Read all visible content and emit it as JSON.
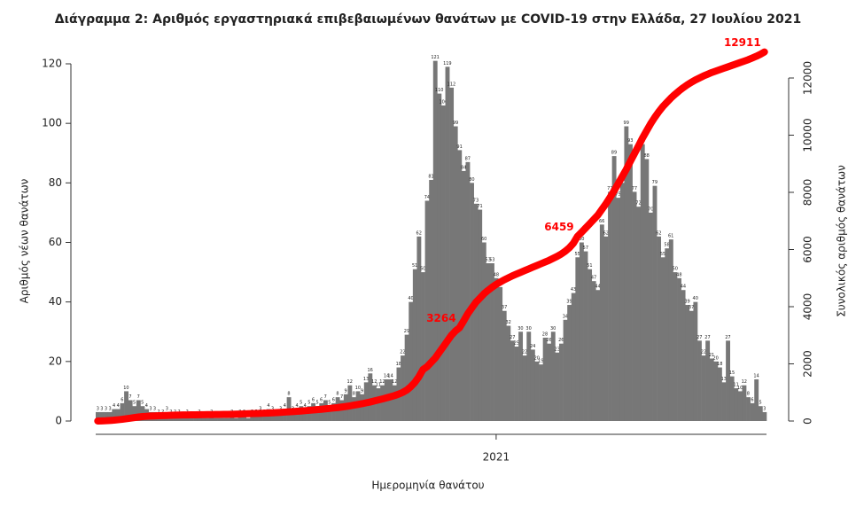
{
  "chart_data": {
    "type": "bar-line",
    "title": "Διάγραμμα 2: Αριθμός εργαστηριακά επιβεβαιωμένων θανάτων με COVID-19 στην Ελλάδα, 27 Ιουλίου 2021",
    "x_label": "Ημερομηνία θανάτου",
    "y_label": "Αριθμός νέων θανάτων",
    "y2_label": "Συνολικός αριθμός θανάτων",
    "categories": [
      null,
      null,
      null,
      null,
      null,
      null,
      null,
      null,
      null,
      null,
      null,
      null,
      null,
      null,
      null,
      null,
      null,
      null,
      null,
      null,
      null,
      null,
      null,
      null,
      null,
      null,
      null,
      null,
      null,
      null,
      null,
      null,
      null,
      null,
      null,
      null,
      null,
      null,
      null,
      null,
      null,
      null,
      null,
      null,
      null,
      null,
      null,
      null,
      null,
      null,
      null,
      null,
      null,
      null,
      null,
      null,
      null,
      null,
      null,
      null,
      null,
      null,
      null,
      null,
      null,
      null,
      null,
      null,
      null,
      null,
      null,
      null,
      null,
      null,
      null,
      null,
      null,
      null,
      null,
      null,
      null,
      null,
      null,
      null,
      null,
      null,
      null,
      null,
      null,
      null,
      null,
      null,
      null,
      null,
      null,
      null,
      null,
      null,
      "2021",
      null,
      null,
      null,
      null,
      null,
      null,
      null,
      null,
      null,
      null,
      null,
      null,
      null,
      null,
      null,
      null,
      null,
      null,
      null,
      null,
      null,
      null,
      null,
      null,
      null,
      null,
      null,
      null,
      null,
      null,
      null,
      null,
      null,
      null,
      null,
      null,
      null,
      null,
      null,
      null,
      null,
      null,
      null,
      null,
      null,
      null,
      null,
      null,
      null,
      null,
      null,
      null,
      null,
      null,
      null,
      null,
      null,
      null,
      null,
      null,
      null,
      null,
      null,
      null,
      null,
      null
    ],
    "series": [
      {
        "color": "#777777",
        "values": [
          3,
          3,
          3,
          3,
          4,
          4,
          6,
          10,
          7,
          5,
          7,
          5,
          4,
          3,
          3,
          2,
          2,
          3,
          2,
          2,
          2,
          1,
          2,
          1,
          1,
          2,
          1,
          1,
          2,
          1,
          1,
          1,
          1,
          2,
          1,
          2,
          2,
          1,
          2,
          2,
          3,
          2,
          4,
          3,
          2,
          3,
          4,
          8,
          3,
          4,
          5,
          4,
          5,
          6,
          5,
          6,
          7,
          5,
          6,
          8,
          7,
          9,
          12,
          8,
          10,
          9,
          13,
          16,
          12,
          11,
          12,
          14,
          14,
          12,
          18,
          22,
          29,
          40,
          51,
          62,
          50,
          74,
          81,
          121,
          110,
          106,
          119,
          112,
          99,
          91,
          84,
          87,
          80,
          73,
          71,
          60,
          53,
          53,
          48,
          45,
          37,
          32,
          27,
          25,
          30,
          22,
          30,
          24,
          20,
          19,
          28,
          26,
          30,
          23,
          26,
          34,
          39,
          43,
          55,
          60,
          57,
          51,
          47,
          44,
          66,
          62,
          77,
          89,
          75,
          80,
          99,
          93,
          77,
          72,
          93,
          88,
          70,
          79,
          62,
          55,
          58,
          61,
          50,
          48,
          44,
          39,
          37,
          40,
          27,
          22,
          27,
          21,
          20,
          18,
          13,
          27,
          15,
          11,
          10,
          12,
          8,
          6,
          14,
          5,
          3
        ]
      },
      {
        "color": "#ff0000",
        "axis": "y2",
        "values": [
          0,
          5,
          10,
          20,
          30,
          45,
          60,
          80,
          100,
          120,
          140,
          155,
          165,
          175,
          180,
          185,
          190,
          195,
          200,
          205,
          210,
          212,
          214,
          216,
          218,
          220,
          222,
          224,
          226,
          228,
          230,
          232,
          234,
          238,
          242,
          246,
          250,
          254,
          258,
          262,
          268,
          274,
          280,
          288,
          296,
          304,
          312,
          320,
          330,
          340,
          350,
          362,
          374,
          386,
          400,
          412,
          426,
          440,
          455,
          470,
          488,
          508,
          530,
          555,
          580,
          605,
          635,
          665,
          700,
          735,
          770,
          810,
          850,
          890,
          940,
          1000,
          1080,
          1200,
          1350,
          1550,
          1800,
          1900,
          2050,
          2200,
          2400,
          2600,
          2800,
          3000,
          3150,
          3264,
          3500,
          3750,
          3950,
          4150,
          4300,
          4450,
          4570,
          4680,
          4780,
          4860,
          4940,
          5010,
          5080,
          5140,
          5200,
          5260,
          5320,
          5380,
          5440,
          5500,
          5560,
          5620,
          5690,
          5760,
          5840,
          5940,
          6060,
          6220,
          6459,
          6600,
          6750,
          6900,
          7050,
          7200,
          7400,
          7600,
          7820,
          8050,
          8300,
          8550,
          8800,
          9080,
          9350,
          9620,
          9900,
          10150,
          10400,
          10620,
          10820,
          11000,
          11150,
          11300,
          11430,
          11550,
          11660,
          11760,
          11850,
          11930,
          12000,
          12070,
          12130,
          12190,
          12240,
          12290,
          12340,
          12390,
          12440,
          12490,
          12540,
          12590,
          12640,
          12700,
          12760,
          12830,
          12911
        ],
        "value_labels": [
          null,
          null,
          null,
          null,
          null,
          null,
          null,
          null,
          null,
          null,
          null,
          null,
          null,
          null,
          null,
          null,
          null,
          null,
          null,
          null,
          null,
          null,
          null,
          null,
          null,
          null,
          null,
          null,
          null,
          null,
          null,
          null,
          null,
          null,
          null,
          null,
          null,
          null,
          null,
          null,
          null,
          null,
          null,
          null,
          null,
          null,
          null,
          null,
          null,
          null,
          null,
          null,
          null,
          null,
          null,
          null,
          null,
          null,
          null,
          null,
          null,
          null,
          null,
          null,
          null,
          null,
          null,
          null,
          null,
          null,
          null,
          null,
          null,
          null,
          null,
          null,
          null,
          null,
          null,
          null,
          null,
          null,
          null,
          null,
          null,
          null,
          null,
          null,
          null,
          "3264",
          null,
          null,
          null,
          null,
          null,
          null,
          null,
          null,
          null,
          null,
          null,
          null,
          null,
          null,
          null,
          null,
          null,
          null,
          null,
          null,
          null,
          null,
          null,
          null,
          null,
          null,
          null,
          null,
          "6459",
          null,
          null,
          null,
          null,
          null,
          null,
          null,
          null,
          null,
          null,
          null,
          null,
          null,
          null,
          null,
          null,
          null,
          null,
          null,
          null,
          null,
          null,
          null,
          null,
          null,
          null,
          null,
          null,
          null,
          null,
          null,
          null,
          null,
          null,
          null,
          null,
          null,
          null,
          null,
          null,
          null,
          null,
          null,
          null,
          null,
          "12911"
        ]
      }
    ],
    "ylim": [
      0,
      120
    ],
    "yticks": [
      0,
      20,
      40,
      60,
      80,
      100,
      120
    ],
    "y2lim": [
      0,
      12000
    ],
    "y2ticks": [
      0,
      2000,
      4000,
      6000,
      8000,
      10000,
      12000
    ],
    "grid": false
  }
}
